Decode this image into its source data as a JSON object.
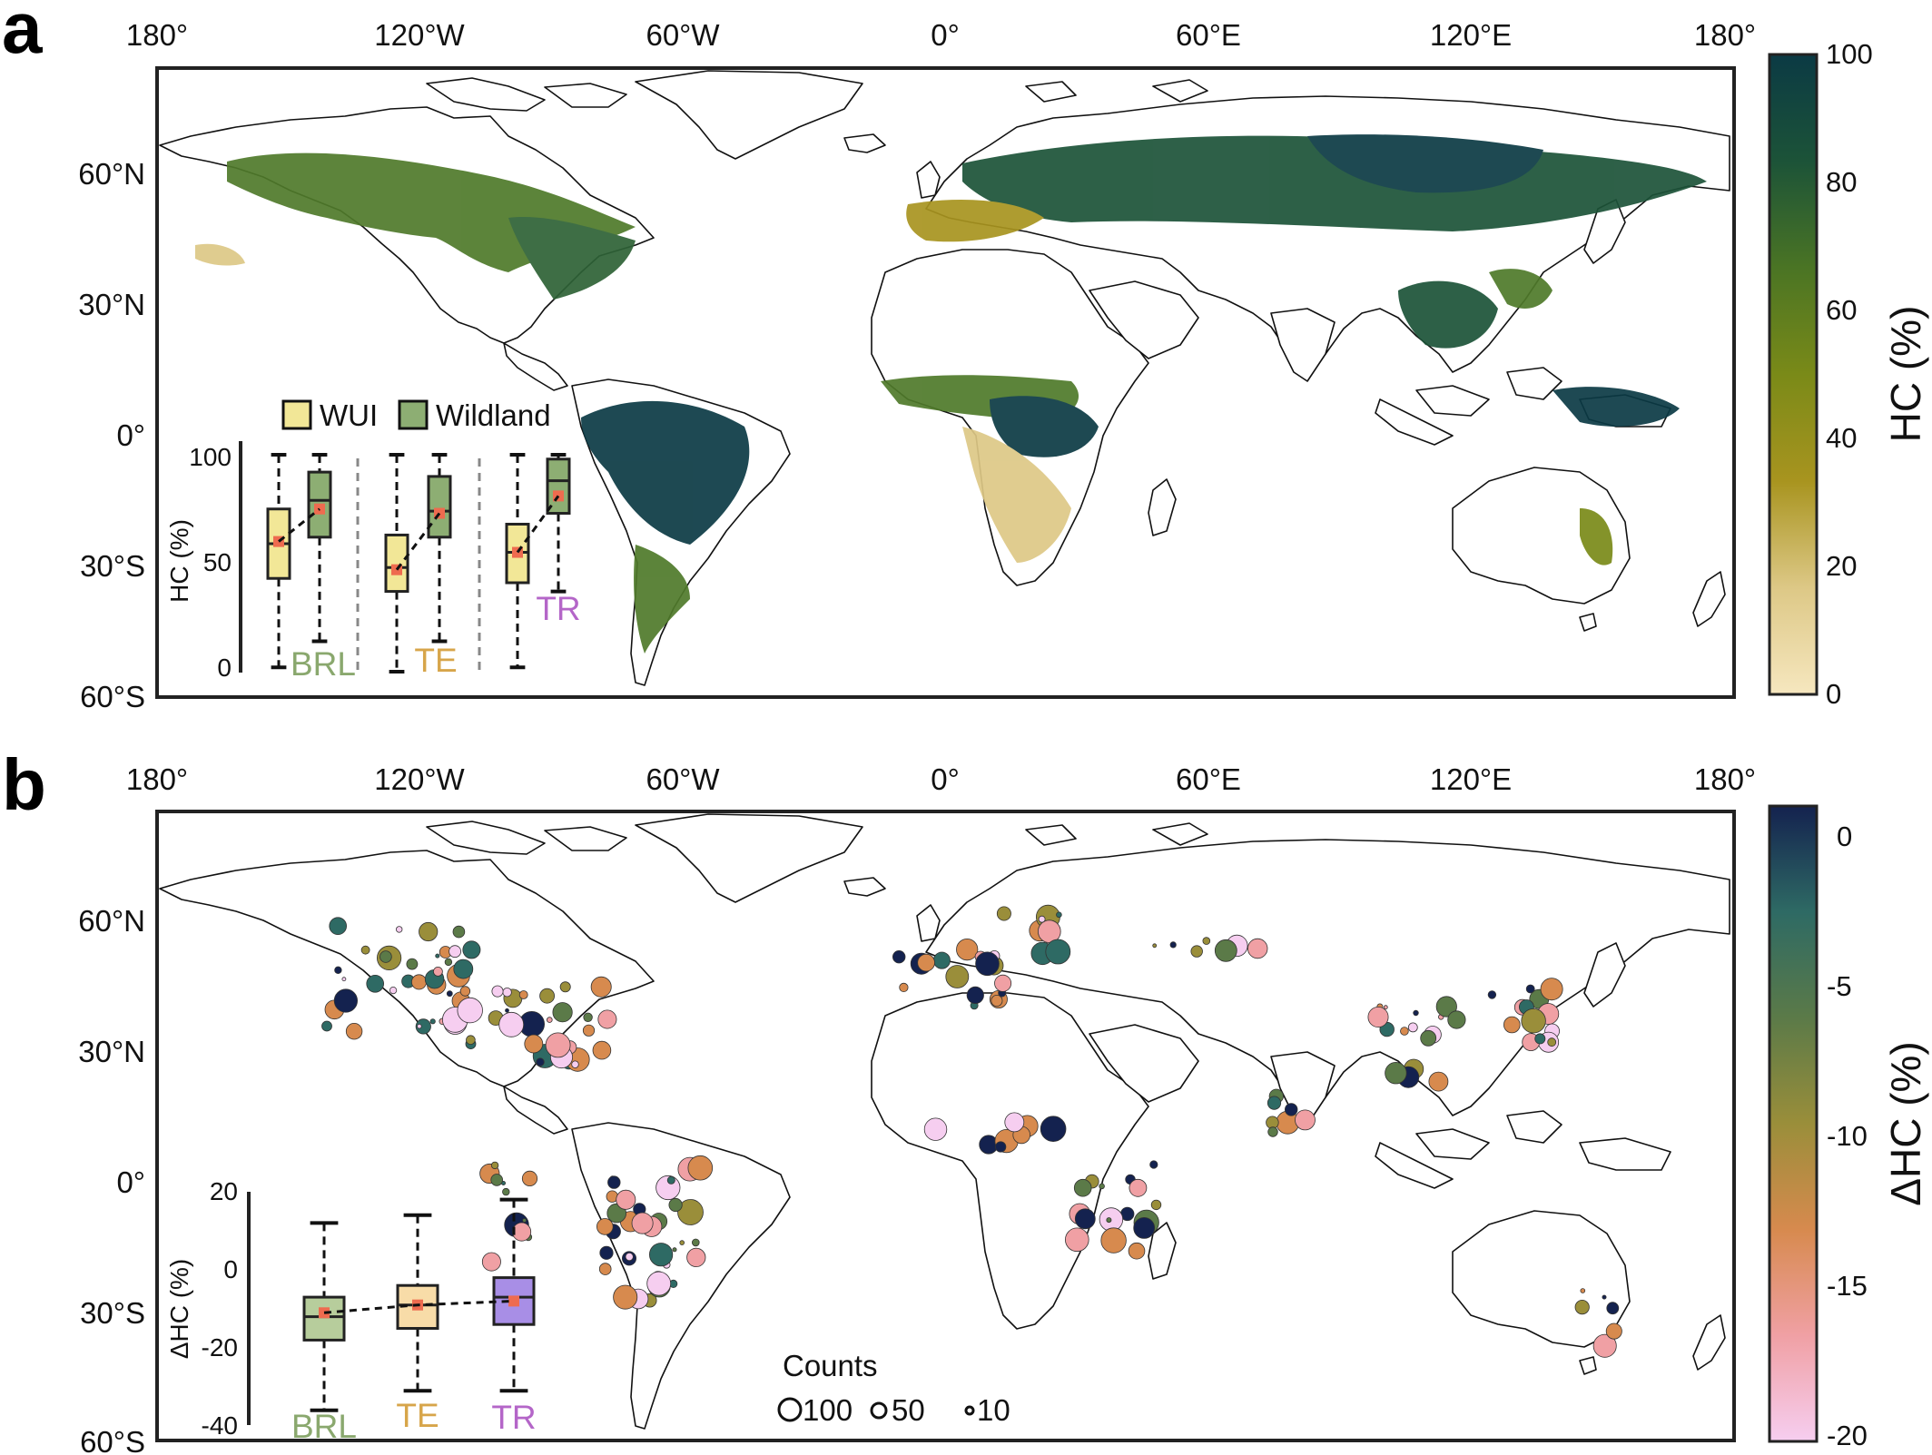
{
  "panels": [
    {
      "letter": "a",
      "x_ticks": [
        "180°",
        "120°W",
        "60°W",
        "0°",
        "60°E",
        "120°E",
        "180°"
      ],
      "y_ticks": [
        "60°N",
        "30°N",
        "0°",
        "30°S",
        "60°S"
      ],
      "colorbar": {
        "title": "HC (%)",
        "ticks": [
          "100",
          "80",
          "60",
          "40",
          "20",
          "0"
        ],
        "colors": [
          "#f6e7bf",
          "#ddc886",
          "#a8941f",
          "#7a8a18",
          "#4a7424",
          "#1c5338",
          "#0b3a44"
        ]
      },
      "inset": {
        "legend": [
          "WUI",
          "Wildland"
        ],
        "ylabel": "HC (%)",
        "yticks": [
          "100",
          "50",
          "0"
        ],
        "groups": [
          {
            "label": "BRL",
            "color": "#8aa86e"
          },
          {
            "label": "TE",
            "color": "#d7a54a"
          },
          {
            "label": "TR",
            "color": "#b466c8"
          }
        ]
      }
    },
    {
      "letter": "b",
      "x_ticks": [
        "180°",
        "120°W",
        "60°W",
        "0°",
        "60°E",
        "120°E",
        "180°"
      ],
      "y_ticks": [
        "60°N",
        "30°N",
        "0°",
        "30°S",
        "60°S"
      ],
      "colorbar": {
        "title": "ΔHC (%)",
        "ticks": [
          "0",
          "-5",
          "-10",
          "-15",
          "-20"
        ],
        "colors": [
          "#f6cef0",
          "#f0a0a4",
          "#d78a4e",
          "#9a8e3a",
          "#5b7a48",
          "#2e6a64",
          "#14224f"
        ]
      },
      "inset": {
        "ylabel": "ΔHC (%)",
        "yticks": [
          "20",
          "0",
          "-20",
          "-40"
        ],
        "groups": [
          {
            "label": "BRL",
            "color": "#8aa86e"
          },
          {
            "label": "TE",
            "color": "#d7a54a"
          },
          {
            "label": "TR",
            "color": "#b466c8"
          }
        ]
      },
      "counts_legend": {
        "title": "Counts",
        "sizes": [
          "100",
          "50",
          "10"
        ]
      }
    }
  ],
  "colors": {
    "wui_fill": "#f2e797",
    "wildland_fill": "#8dae73",
    "median_marker": "#ee6b4f",
    "land_outline": "#111111"
  },
  "chart_data": [
    {
      "type": "box",
      "ylabel": "HC (%)",
      "ylim": [
        0,
        100
      ],
      "categories": [
        "BRL",
        "TE",
        "TR"
      ],
      "series": [
        {
          "name": "WUI",
          "whisker_low": [
            2,
            0,
            2
          ],
          "q1": [
            43,
            37,
            41
          ],
          "median": [
            59,
            48,
            55
          ],
          "q3": [
            75,
            63,
            68
          ],
          "whisker_high": [
            100,
            100,
            100
          ],
          "mean": [
            60,
            47,
            55
          ]
        },
        {
          "name": "Wildland",
          "whisker_low": [
            14,
            14,
            37
          ],
          "q1": [
            62,
            62,
            73
          ],
          "median": [
            79,
            74,
            88
          ],
          "q3": [
            92,
            90,
            98
          ],
          "whisker_high": [
            100,
            100,
            100
          ],
          "mean": [
            75,
            73,
            81
          ]
        }
      ]
    },
    {
      "type": "box",
      "ylabel": "ΔHC (%)",
      "ylim": [
        -40,
        20
      ],
      "categories": [
        "BRL",
        "TE",
        "TR"
      ],
      "series": [
        {
          "name": "",
          "whisker_low": [
            -36,
            -31,
            -31
          ],
          "q1": [
            -18,
            -15,
            -14
          ],
          "median": [
            -12,
            -9,
            -7
          ],
          "q3": [
            -7,
            -4,
            -2
          ],
          "whisker_high": [
            12,
            14,
            18
          ],
          "mean": [
            -11,
            -9,
            -8
          ]
        }
      ]
    }
  ]
}
